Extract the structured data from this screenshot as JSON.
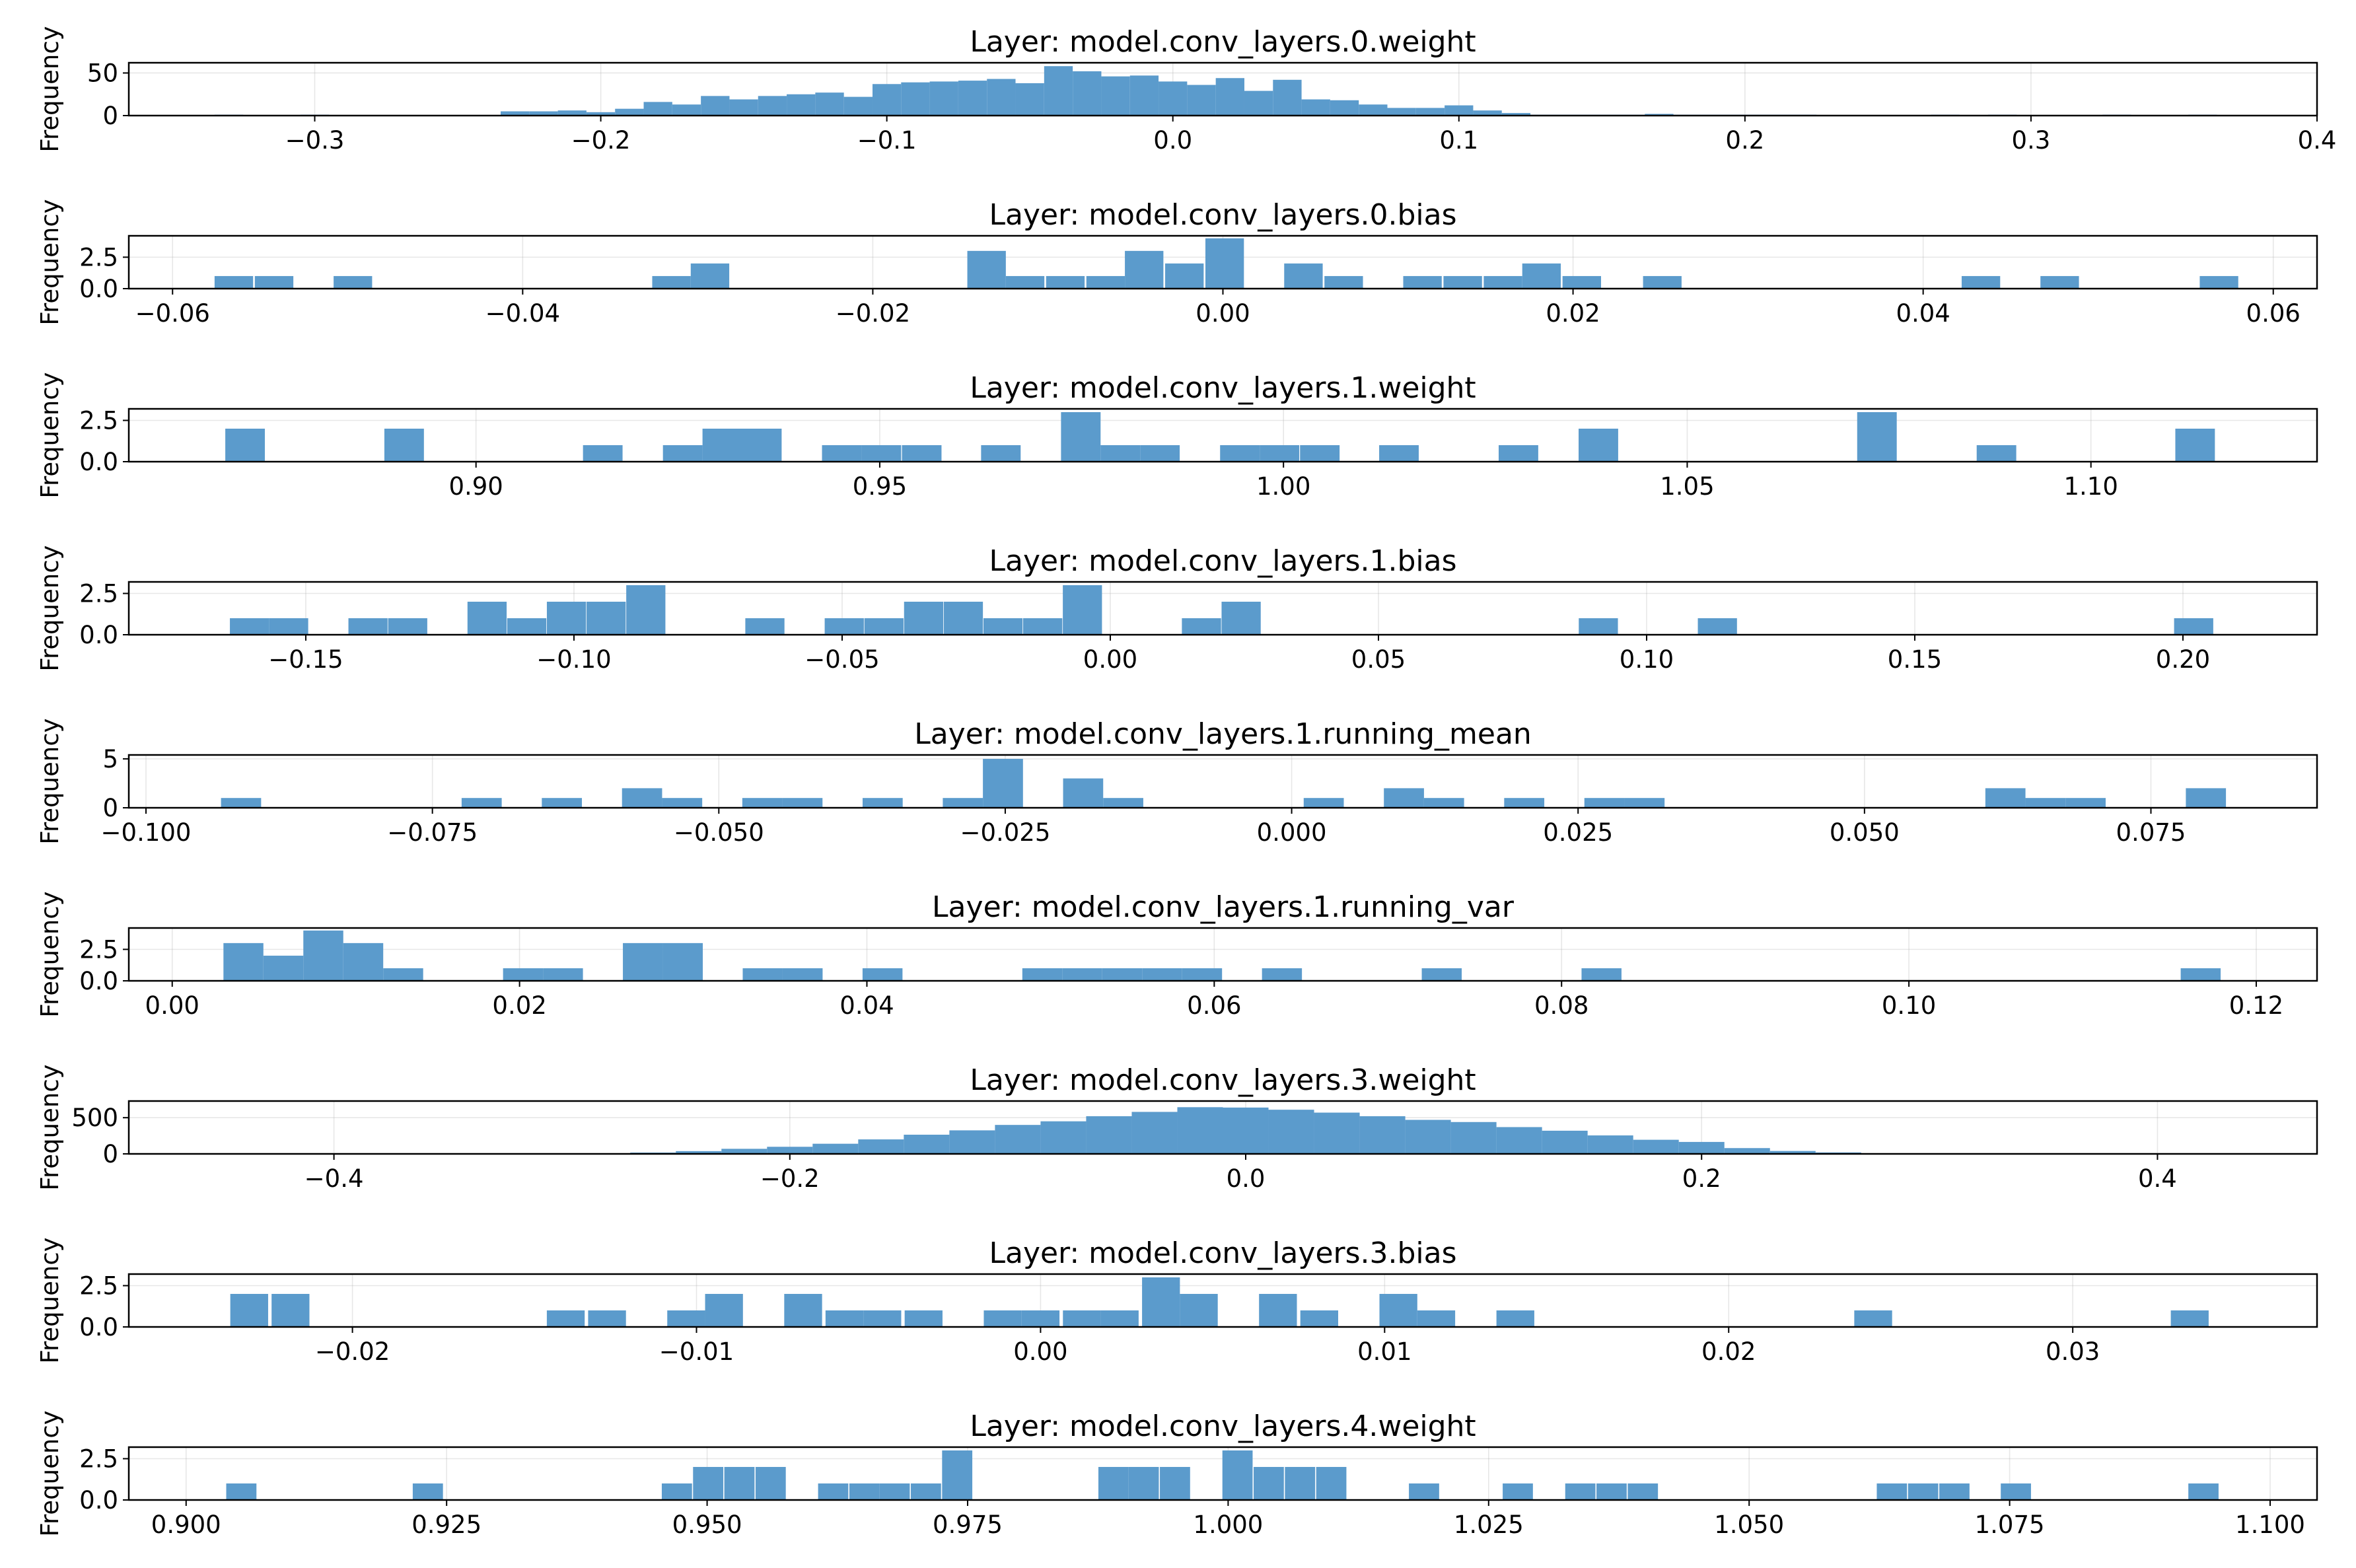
{
  "figure": {
    "ylabel": "Frequency",
    "bar_color": "#5b9bcc"
  },
  "chart_data": [
    {
      "type": "bar",
      "title": "Layer: model.conv_layers.0.weight",
      "ylabel": "Frequency",
      "x": [
        -0.33,
        -0.3,
        -0.23,
        -0.22,
        -0.21,
        -0.2,
        -0.19,
        -0.18,
        -0.17,
        -0.16,
        -0.15,
        -0.14,
        -0.13,
        -0.12,
        -0.11,
        -0.1,
        -0.09,
        -0.08,
        -0.07,
        -0.06,
        -0.05,
        -0.04,
        -0.03,
        -0.02,
        -0.01,
        0.0,
        0.01,
        0.02,
        0.03,
        0.04,
        0.05,
        0.06,
        0.07,
        0.08,
        0.09,
        0.1,
        0.11,
        0.12,
        0.13,
        0.14,
        0.15,
        0.16,
        0.17,
        0.18,
        0.19,
        0.2,
        0.21,
        0.22,
        0.27,
        0.29,
        0.33,
        0.36
      ],
      "values": [
        1,
        1,
        5,
        5,
        6,
        4,
        8,
        16,
        13,
        23,
        19,
        23,
        25,
        27,
        22,
        37,
        39,
        40,
        41,
        43,
        38,
        58,
        52,
        46,
        47,
        40,
        36,
        44,
        29,
        42,
        19,
        18,
        13,
        9,
        9,
        12,
        6,
        3,
        1,
        1,
        1,
        1,
        2,
        1,
        1,
        1,
        1,
        1,
        1,
        1,
        1,
        1
      ],
      "xlim": [
        -0.365,
        0.4
      ],
      "ylim": [
        0,
        62
      ],
      "xticks": [
        -0.3,
        -0.2,
        -0.1,
        0.0,
        0.1,
        0.2,
        0.3,
        0.4
      ],
      "xtick_labels": [
        "−0.3",
        "−0.2",
        "−0.1",
        "0.0",
        "0.1",
        "0.2",
        "0.3",
        "0.4"
      ],
      "yticks": [
        0,
        50
      ],
      "ytick_labels": [
        "0",
        "50"
      ],
      "grid": true
    },
    {
      "type": "bar",
      "title": "Layer: model.conv_layers.0.bias",
      "ylabel": "Frequency",
      "x": [
        -0.0565,
        -0.0542,
        -0.0497,
        -0.0315,
        -0.0293,
        -0.0135,
        -0.0113,
        -0.009,
        -0.0067,
        -0.0045,
        -0.0022,
        0.0001,
        0.0023,
        0.0046,
        0.0069,
        0.0114,
        0.0137,
        0.016,
        0.0182,
        0.0205,
        0.0251,
        0.041,
        0.0433,
        0.0478,
        0.0569
      ],
      "values": [
        1,
        1,
        1,
        1,
        2,
        3,
        1,
        1,
        1,
        3,
        2,
        4,
        0,
        2,
        1,
        1,
        1,
        1,
        2,
        1,
        1,
        0,
        1,
        1,
        1
      ],
      "xlim": [
        -0.0625,
        0.0625
      ],
      "ylim": [
        0,
        4.2
      ],
      "xticks": [
        -0.06,
        -0.04,
        -0.02,
        0.0,
        0.02,
        0.04,
        0.06
      ],
      "xtick_labels": [
        "−0.06",
        "−0.04",
        "−0.02",
        "0.00",
        "0.02",
        "0.04",
        "0.06"
      ],
      "yticks": [
        0,
        2.5
      ],
      "ytick_labels": [
        "0.0",
        "2.5"
      ],
      "grid": true
    },
    {
      "type": "bar",
      "title": "Layer: model.conv_layers.1.weight",
      "ylabel": "Frequency",
      "x": [
        0.8714,
        0.8911,
        0.9157,
        0.9256,
        0.9305,
        0.9354,
        0.9453,
        0.9502,
        0.9552,
        0.965,
        0.9749,
        0.9798,
        0.9847,
        0.9946,
        0.9995,
        1.0045,
        1.0143,
        1.0291,
        1.039,
        1.0735,
        1.0883,
        1.1129
      ],
      "values": [
        2,
        2,
        1,
        1,
        2,
        2,
        1,
        1,
        1,
        1,
        3,
        1,
        1,
        1,
        1,
        1,
        1,
        1,
        2,
        3,
        1,
        2
      ],
      "xlim": [
        0.857,
        1.128
      ],
      "ylim": [
        0,
        3.2
      ],
      "xticks": [
        0.9,
        0.95,
        1.0,
        1.05,
        1.1
      ],
      "xtick_labels": [
        "0.90",
        "0.95",
        "1.00",
        "1.05",
        "1.10"
      ],
      "yticks": [
        0,
        2.5
      ],
      "ytick_labels": [
        "0.0",
        "2.5"
      ],
      "grid": true
    },
    {
      "type": "bar",
      "title": "Layer: model.conv_layers.1.bias",
      "ylabel": "Frequency",
      "x": [
        -0.1605,
        -0.1532,
        -0.1384,
        -0.131,
        -0.1162,
        -0.1088,
        -0.1014,
        -0.094,
        -0.0866,
        -0.0644,
        -0.0496,
        -0.0422,
        -0.0348,
        -0.0274,
        -0.02,
        -0.0126,
        -0.0052,
        0.017,
        0.0244,
        0.091,
        0.1132,
        0.202
      ],
      "values": [
        1,
        1,
        1,
        1,
        2,
        1,
        2,
        2,
        3,
        1,
        1,
        1,
        2,
        2,
        1,
        1,
        3,
        1,
        2,
        1,
        1,
        1
      ],
      "xlim": [
        -0.183,
        0.225
      ],
      "ylim": [
        0,
        3.2
      ],
      "xticks": [
        -0.15,
        -0.1,
        -0.05,
        0.0,
        0.05,
        0.1,
        0.15,
        0.2
      ],
      "xtick_labels": [
        "−0.15",
        "−0.10",
        "−0.05",
        "0.00",
        "0.05",
        "0.10",
        "0.15",
        "0.20"
      ],
      "yticks": [
        0,
        2.5
      ],
      "ytick_labels": [
        "0.0",
        "2.5"
      ],
      "grid": true
    },
    {
      "type": "bar",
      "title": "Layer: model.conv_layers.1.running_mean",
      "ylabel": "Frequency",
      "x": [
        -0.0917,
        -0.0707,
        -0.0637,
        -0.0567,
        -0.0532,
        -0.0462,
        -0.0427,
        -0.0357,
        -0.0287,
        -0.0252,
        -0.0182,
        -0.0147,
        0.0028,
        0.0098,
        0.0133,
        0.0203,
        0.0273,
        0.0308,
        0.0623,
        0.0658,
        0.0693,
        0.0798
      ],
      "values": [
        1,
        1,
        1,
        2,
        1,
        1,
        1,
        1,
        1,
        5,
        3,
        1,
        1,
        2,
        1,
        1,
        1,
        1,
        2,
        1,
        1,
        2
      ],
      "xlim": [
        -0.1015,
        0.0895
      ],
      "ylim": [
        0,
        5.4
      ],
      "xticks": [
        -0.1,
        -0.075,
        -0.05,
        -0.025,
        0.0,
        0.025,
        0.05,
        0.075
      ],
      "xtick_labels": [
        "−0.100",
        "−0.075",
        "−0.050",
        "−0.025",
        "0.000",
        "0.025",
        "0.050",
        "0.075"
      ],
      "yticks": [
        0,
        5
      ],
      "ytick_labels": [
        "0",
        "5"
      ],
      "grid": true
    },
    {
      "type": "bar",
      "title": "Layer: model.conv_layers.1.running_var",
      "ylabel": "Frequency",
      "x": [
        0.0041,
        0.0064,
        0.0087,
        0.011,
        0.0133,
        0.0202,
        0.0225,
        0.0271,
        0.0294,
        0.034,
        0.0363,
        0.0409,
        0.0501,
        0.0524,
        0.0547,
        0.057,
        0.0593,
        0.0639,
        0.0731,
        0.0823,
        0.1168
      ],
      "values": [
        3,
        2,
        4,
        3,
        1,
        1,
        1,
        3,
        3,
        1,
        1,
        1,
        1,
        1,
        1,
        1,
        1,
        1,
        1,
        1,
        1
      ],
      "xlim": [
        -0.0025,
        0.1235
      ],
      "ylim": [
        0,
        4.2
      ],
      "xticks": [
        0.0,
        0.02,
        0.04,
        0.06,
        0.08,
        0.1,
        0.12
      ],
      "xtick_labels": [
        "0.00",
        "0.02",
        "0.04",
        "0.06",
        "0.08",
        "0.10",
        "0.12"
      ],
      "yticks": [
        0,
        2.5
      ],
      "ytick_labels": [
        "0.0",
        "2.5"
      ],
      "grid": true
    },
    {
      "type": "bar",
      "title": "Layer: model.conv_layers.3.weight",
      "ylabel": "Frequency",
      "x": [
        -0.36,
        -0.3,
        -0.26,
        -0.24,
        -0.22,
        -0.2,
        -0.18,
        -0.16,
        -0.14,
        -0.12,
        -0.1,
        -0.08,
        -0.06,
        -0.04,
        -0.02,
        0.0,
        0.02,
        0.04,
        0.06,
        0.08,
        0.1,
        0.12,
        0.14,
        0.16,
        0.18,
        0.2,
        0.22,
        0.24,
        0.26,
        0.28,
        0.32
      ],
      "values": [
        2,
        5,
        18,
        38,
        70,
        98,
        140,
        200,
        265,
        325,
        400,
        450,
        520,
        580,
        645,
        640,
        610,
        570,
        520,
        470,
        440,
        370,
        320,
        255,
        195,
        165,
        80,
        40,
        20,
        8,
        2
      ],
      "xlim": [
        -0.49,
        0.47
      ],
      "ylim": [
        0,
        730
      ],
      "xticks": [
        -0.4,
        -0.2,
        0.0,
        0.2,
        0.4
      ],
      "xtick_labels": [
        "−0.4",
        "−0.2",
        "0.0",
        "0.2",
        "0.4"
      ],
      "yticks": [
        0,
        500
      ],
      "ytick_labels": [
        "0",
        "500"
      ],
      "grid": true
    },
    {
      "type": "bar",
      "title": "Layer: model.conv_layers.3.bias",
      "ylabel": "Frequency",
      "x": [
        -0.023,
        -0.0218,
        -0.0138,
        -0.0126,
        -0.0103,
        -0.0092,
        -0.0069,
        -0.0057,
        -0.0046,
        -0.0034,
        -0.0011,
        0.0,
        0.0012,
        0.0023,
        0.0035,
        0.0046,
        0.0069,
        0.0081,
        0.0104,
        0.0115,
        0.0138,
        0.0242,
        0.0334
      ],
      "values": [
        2,
        2,
        1,
        1,
        1,
        2,
        2,
        1,
        1,
        1,
        1,
        1,
        1,
        1,
        3,
        2,
        2,
        1,
        2,
        1,
        1,
        1,
        1
      ],
      "xlim": [
        -0.0265,
        0.0371
      ],
      "ylim": [
        0,
        3.2
      ],
      "xticks": [
        -0.02,
        -0.01,
        0.0,
        0.01,
        0.02,
        0.03
      ],
      "xtick_labels": [
        "−0.02",
        "−0.01",
        "0.00",
        "0.01",
        "0.02",
        "0.03"
      ],
      "yticks": [
        0,
        2.5
      ],
      "ytick_labels": [
        "0.0",
        "2.5"
      ],
      "grid": true
    },
    {
      "type": "bar",
      "title": "Layer: model.conv_layers.4.weight",
      "ylabel": "Frequency",
      "x": [
        0.9053,
        0.9232,
        0.9471,
        0.9501,
        0.9531,
        0.9561,
        0.9621,
        0.9651,
        0.968,
        0.971,
        0.974,
        0.989,
        0.9919,
        0.9949,
        1.0009,
        1.0039,
        1.0069,
        1.0099,
        1.0188,
        1.0278,
        1.0338,
        1.0368,
        1.0398,
        1.0637,
        1.0667,
        1.0697,
        1.0756,
        1.0936
      ],
      "values": [
        1,
        1,
        1,
        2,
        2,
        2,
        1,
        1,
        1,
        1,
        3,
        2,
        2,
        2,
        3,
        2,
        2,
        2,
        1,
        1,
        1,
        1,
        1,
        1,
        1,
        1,
        1,
        1
      ],
      "xlim": [
        0.8945,
        1.1045
      ],
      "ylim": [
        0,
        3.2
      ],
      "xticks": [
        0.9,
        0.925,
        0.95,
        0.975,
        1.0,
        1.025,
        1.05,
        1.075,
        1.1
      ],
      "xtick_labels": [
        "0.900",
        "0.925",
        "0.950",
        "0.975",
        "1.000",
        "1.025",
        "1.050",
        "1.075",
        "1.100"
      ],
      "yticks": [
        0,
        2.5
      ],
      "ytick_labels": [
        "0.0",
        "2.5"
      ],
      "grid": true
    }
  ]
}
